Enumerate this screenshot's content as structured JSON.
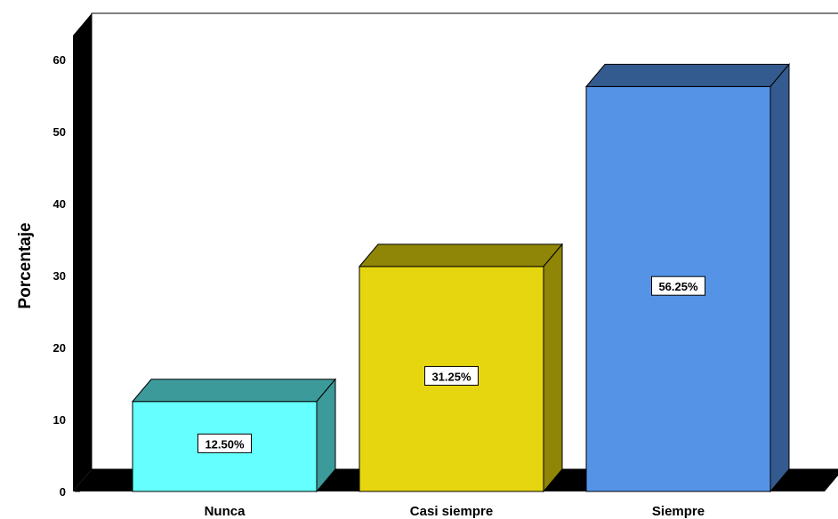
{
  "chart_data": {
    "type": "bar",
    "categories": [
      "Nunca",
      "Casi siempre",
      "Siempre"
    ],
    "values": [
      12.5,
      31.25,
      56.25
    ],
    "data_labels": [
      "12.50%",
      "31.25%",
      "56.25%"
    ],
    "colors": [
      "#66ffff",
      "#e6d60f",
      "#5593e6"
    ],
    "side_colors": [
      "#3d9a9a",
      "#8f8507",
      "#345b8f"
    ],
    "ylabel": "Porcentaje",
    "xlabel": "",
    "ylim": [
      0,
      60
    ],
    "yticks": [
      0,
      10,
      20,
      30,
      40,
      50,
      60
    ],
    "grid": false,
    "style": "3d"
  }
}
